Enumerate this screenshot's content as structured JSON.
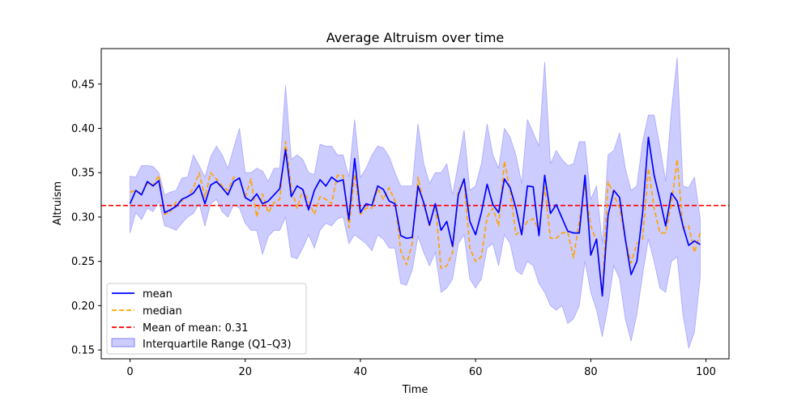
{
  "chart_data": {
    "type": "line",
    "title": "Average Altruism over time",
    "xlabel": "Time",
    "ylabel": "Altruism",
    "xlim": [
      -5,
      104
    ],
    "ylim": [
      0.14,
      0.49
    ],
    "xticks": [
      0,
      20,
      40,
      60,
      80,
      100
    ],
    "yticks": [
      0.15,
      0.2,
      0.25,
      0.3,
      0.35,
      0.4,
      0.45
    ],
    "ytick_labels": [
      "0.15",
      "0.20",
      "0.25",
      "0.30",
      "0.35",
      "0.40",
      "0.45"
    ],
    "grid": false,
    "legend_position": "lower-left",
    "x": [
      0,
      1,
      2,
      3,
      4,
      5,
      6,
      7,
      8,
      9,
      10,
      11,
      12,
      13,
      14,
      15,
      16,
      17,
      18,
      19,
      20,
      21,
      22,
      23,
      24,
      25,
      26,
      27,
      28,
      29,
      30,
      31,
      32,
      33,
      34,
      35,
      36,
      37,
      38,
      39,
      40,
      41,
      42,
      43,
      44,
      45,
      46,
      47,
      48,
      49,
      50,
      51,
      52,
      53,
      54,
      55,
      56,
      57,
      58,
      59,
      60,
      61,
      62,
      63,
      64,
      65,
      66,
      67,
      68,
      69,
      70,
      71,
      72,
      73,
      74,
      75,
      76,
      77,
      78,
      79,
      80,
      81,
      82,
      83,
      84,
      85,
      86,
      87,
      88,
      89,
      90,
      91,
      92,
      93,
      94,
      95,
      96,
      97,
      98,
      99
    ],
    "series": [
      {
        "name": "mean",
        "color": "#0000ff",
        "style": "solid",
        "values": [
          0.315,
          0.33,
          0.325,
          0.34,
          0.335,
          0.341,
          0.305,
          0.308,
          0.312,
          0.32,
          0.323,
          0.327,
          0.336,
          0.315,
          0.336,
          0.34,
          0.333,
          0.325,
          0.34,
          0.344,
          0.322,
          0.318,
          0.326,
          0.315,
          0.318,
          0.325,
          0.332,
          0.376,
          0.323,
          0.335,
          0.331,
          0.308,
          0.33,
          0.342,
          0.335,
          0.345,
          0.34,
          0.342,
          0.297,
          0.366,
          0.305,
          0.315,
          0.313,
          0.335,
          0.331,
          0.318,
          0.315,
          0.279,
          0.276,
          0.277,
          0.335,
          0.316,
          0.291,
          0.315,
          0.285,
          0.295,
          0.267,
          0.325,
          0.343,
          0.295,
          0.28,
          0.305,
          0.337,
          0.314,
          0.305,
          0.343,
          0.333,
          0.31,
          0.28,
          0.335,
          0.334,
          0.279,
          0.347,
          0.304,
          0.314,
          0.299,
          0.284,
          0.282,
          0.282,
          0.347,
          0.257,
          0.275,
          0.211,
          0.302,
          0.33,
          0.322,
          0.275,
          0.235,
          0.25,
          0.305,
          0.39,
          0.347,
          0.32,
          0.29,
          0.327,
          0.318,
          0.29,
          0.268,
          0.273,
          0.269
        ]
      },
      {
        "name": "median",
        "color": "#ffa500",
        "style": "dashed",
        "values": [
          0.328,
          0.33,
          0.326,
          0.338,
          0.336,
          0.347,
          0.303,
          0.306,
          0.317,
          0.318,
          0.323,
          0.333,
          0.35,
          0.322,
          0.35,
          0.343,
          0.335,
          0.33,
          0.345,
          0.343,
          0.322,
          0.343,
          0.3,
          0.326,
          0.305,
          0.316,
          0.32,
          0.385,
          0.333,
          0.31,
          0.331,
          0.318,
          0.303,
          0.323,
          0.32,
          0.315,
          0.347,
          0.347,
          0.288,
          0.348,
          0.303,
          0.31,
          0.31,
          0.332,
          0.32,
          0.333,
          0.318,
          0.262,
          0.246,
          0.27,
          0.345,
          0.314,
          0.29,
          0.315,
          0.242,
          0.245,
          0.26,
          0.33,
          0.34,
          0.265,
          0.25,
          0.255,
          0.3,
          0.31,
          0.29,
          0.363,
          0.33,
          0.28,
          0.285,
          0.295,
          0.298,
          0.285,
          0.334,
          0.276,
          0.276,
          0.282,
          0.283,
          0.254,
          0.295,
          0.335,
          0.29,
          0.272,
          0.215,
          0.34,
          0.325,
          0.31,
          0.275,
          0.248,
          0.27,
          0.275,
          0.355,
          0.31,
          0.282,
          0.282,
          0.315,
          0.365,
          0.288,
          0.29,
          0.26,
          0.282
        ]
      }
    ],
    "iqr": {
      "name": "Interquartile Range (Q1–Q3)",
      "color": "#8080ff",
      "q1": [
        0.282,
        0.305,
        0.297,
        0.31,
        0.306,
        0.318,
        0.29,
        0.288,
        0.285,
        0.293,
        0.3,
        0.304,
        0.315,
        0.29,
        0.315,
        0.32,
        0.306,
        0.3,
        0.314,
        0.31,
        0.293,
        0.285,
        0.285,
        0.258,
        0.278,
        0.285,
        0.285,
        0.3,
        0.255,
        0.253,
        0.265,
        0.28,
        0.265,
        0.285,
        0.293,
        0.29,
        0.298,
        0.3,
        0.27,
        0.28,
        0.275,
        0.27,
        0.262,
        0.28,
        0.275,
        0.265,
        0.265,
        0.225,
        0.223,
        0.24,
        0.278,
        0.26,
        0.245,
        0.26,
        0.215,
        0.22,
        0.23,
        0.27,
        0.28,
        0.23,
        0.22,
        0.23,
        0.265,
        0.27,
        0.245,
        0.28,
        0.27,
        0.24,
        0.235,
        0.25,
        0.245,
        0.225,
        0.215,
        0.2,
        0.195,
        0.2,
        0.18,
        0.185,
        0.2,
        0.25,
        0.215,
        0.195,
        0.165,
        0.2,
        0.245,
        0.23,
        0.185,
        0.16,
        0.19,
        0.235,
        0.275,
        0.25,
        0.22,
        0.215,
        0.25,
        0.255,
        0.19,
        0.152,
        0.17,
        0.232
      ],
      "q3": [
        0.346,
        0.345,
        0.358,
        0.358,
        0.357,
        0.35,
        0.325,
        0.328,
        0.33,
        0.344,
        0.345,
        0.37,
        0.358,
        0.345,
        0.368,
        0.38,
        0.37,
        0.355,
        0.378,
        0.4,
        0.35,
        0.35,
        0.355,
        0.352,
        0.34,
        0.355,
        0.355,
        0.448,
        0.365,
        0.37,
        0.365,
        0.35,
        0.348,
        0.382,
        0.38,
        0.38,
        0.37,
        0.37,
        0.345,
        0.41,
        0.345,
        0.355,
        0.37,
        0.38,
        0.378,
        0.368,
        0.35,
        0.335,
        0.335,
        0.335,
        0.405,
        0.36,
        0.338,
        0.35,
        0.35,
        0.36,
        0.325,
        0.36,
        0.398,
        0.33,
        0.335,
        0.36,
        0.405,
        0.37,
        0.355,
        0.4,
        0.39,
        0.37,
        0.338,
        0.41,
        0.395,
        0.38,
        0.475,
        0.36,
        0.375,
        0.365,
        0.358,
        0.36,
        0.385,
        0.385,
        0.32,
        0.335,
        0.27,
        0.37,
        0.375,
        0.395,
        0.355,
        0.33,
        0.335,
        0.385,
        0.415,
        0.415,
        0.38,
        0.34,
        0.42,
        0.48,
        0.335,
        0.333,
        0.345,
        0.298
      ]
    },
    "mean_line": {
      "label": "Mean of mean: 0.31",
      "value": 0.313,
      "color": "#ff0000",
      "style": "dashed"
    }
  },
  "legend": {
    "mean": "mean",
    "median": "median",
    "mean_of_mean": "Mean of mean: 0.31",
    "iqr": "Interquartile Range (Q1–Q3)"
  }
}
